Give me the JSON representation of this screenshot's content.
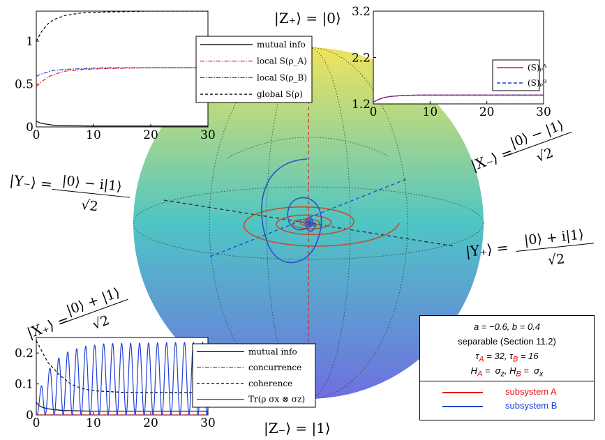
{
  "colors": {
    "red": "#e41a1c",
    "blue": "#1f3fd8",
    "sphere_top": "#f1e45c",
    "sphere_mid": "#4fc5c4",
    "sphere_bottom": "#6f6fe0",
    "spiral_red": "#c0502e",
    "spiral_blue": "#2e4fcc"
  },
  "bloch": {
    "labels": {
      "z_plus": "|Z₊⟩ = |0⟩",
      "z_minus": "|Z₋⟩ = |1⟩",
      "x_minus_lhs": "|X₋⟩ =",
      "x_minus_num": "|0⟩ − |1⟩",
      "x_minus_den": "√2",
      "x_plus_lhs": "|X₊⟩ =",
      "x_plus_num": "|0⟩ + |1⟩",
      "x_plus_den": "√2",
      "y_minus_lhs": "|Y₋⟩ =",
      "y_minus_num": "|0⟩ − i|1⟩",
      "y_minus_den": "√2",
      "y_plus_lhs": "|Y₊⟩ =",
      "y_plus_num": "|0⟩ + i|1⟩",
      "y_plus_den": "√2"
    }
  },
  "info": {
    "params": "a = −0.6, b = 0.4",
    "regime": "separable (Section 11.2)",
    "tau_a": "32",
    "tau_b": "16",
    "h_a": "σ",
    "h_a_sub": "z",
    "h_b": "σ",
    "h_b_sub": "x",
    "legend": [
      "subsystem A",
      "subsystem B"
    ]
  },
  "chart_data": [
    {
      "type": "line",
      "xlim": [
        0,
        30
      ],
      "ylim": [
        0,
        1.35
      ],
      "xticks": [
        "0",
        "10",
        "20",
        "30"
      ],
      "yticks": [
        "0",
        "0.5",
        "1"
      ],
      "legend_position": "top-right",
      "series": [
        {
          "name": "mutual info",
          "x": [
            0,
            0.5,
            1,
            2,
            3,
            5,
            10,
            20,
            30
          ],
          "values": [
            0.07,
            0.05,
            0.04,
            0.03,
            0.02,
            0.015,
            0.01,
            0.01,
            0.01
          ]
        },
        {
          "name": "local S(ρ_A)",
          "x": [
            0,
            1,
            2,
            3,
            5,
            8,
            12,
            20,
            30
          ],
          "values": [
            0.47,
            0.53,
            0.58,
            0.61,
            0.65,
            0.67,
            0.68,
            0.69,
            0.69
          ]
        },
        {
          "name": "local S(ρ_B)",
          "x": [
            0,
            1,
            2,
            3,
            5,
            8,
            12,
            20,
            30
          ],
          "values": [
            0.59,
            0.62,
            0.64,
            0.66,
            0.67,
            0.68,
            0.69,
            0.69,
            0.69
          ]
        },
        {
          "name": "global S(ρ)",
          "x": [
            0,
            1,
            2,
            3,
            5,
            8,
            12,
            20,
            30
          ],
          "values": [
            1.0,
            1.12,
            1.2,
            1.25,
            1.3,
            1.33,
            1.34,
            1.35,
            1.35
          ]
        }
      ]
    },
    {
      "type": "line",
      "xlim": [
        0,
        30
      ],
      "ylim": [
        1.2,
        3.2
      ],
      "xticks": [
        "0",
        "10",
        "20",
        "30"
      ],
      "yticks": [
        "1.2",
        "2.2",
        "3.2"
      ],
      "legend_position": "top-right",
      "series": [
        {
          "name": "(S)ᵨᴬ",
          "x": [
            0,
            1,
            2,
            3,
            5,
            8,
            12,
            20,
            30
          ],
          "values": [
            1.24,
            1.3,
            1.34,
            1.36,
            1.38,
            1.39,
            1.39,
            1.39,
            1.39
          ]
        },
        {
          "name": "(S)ᵨᴮ",
          "x": [
            0,
            1,
            2,
            3,
            5,
            8,
            12,
            20,
            30
          ],
          "values": [
            1.24,
            1.3,
            1.34,
            1.36,
            1.38,
            1.39,
            1.39,
            1.39,
            1.39
          ]
        }
      ]
    },
    {
      "type": "line",
      "xlim": [
        0,
        30
      ],
      "ylim": [
        0,
        0.25
      ],
      "xticks": [
        "0",
        "10",
        "20",
        "30"
      ],
      "yticks": [
        "0",
        "0.1",
        "0.2"
      ],
      "legend_position": "top-right",
      "series": [
        {
          "name": "mutual info",
          "x": [
            0,
            0.5,
            1,
            2,
            3,
            5,
            10,
            20,
            30
          ],
          "values": [
            0.04,
            0.03,
            0.025,
            0.02,
            0.017,
            0.014,
            0.012,
            0.012,
            0.012
          ]
        },
        {
          "name": "concurrence",
          "x": [
            0,
            30
          ],
          "values": [
            0,
            0
          ]
        },
        {
          "name": "coherence",
          "x": [
            0,
            2,
            4,
            6,
            8,
            10,
            15,
            20,
            30
          ],
          "values": [
            0.24,
            0.17,
            0.13,
            0.1,
            0.085,
            0.078,
            0.073,
            0.072,
            0.072
          ]
        },
        {
          "name": "Tr(ρ σx ⊗ σz)",
          "oscillation": {
            "period": 1.57,
            "envelope_t": [
              0,
              1,
              3,
              5,
              8,
              12,
              30
            ],
            "envelope": [
              0,
              0.11,
              0.17,
              0.2,
              0.22,
              0.23,
              0.235
            ]
          }
        }
      ]
    }
  ]
}
